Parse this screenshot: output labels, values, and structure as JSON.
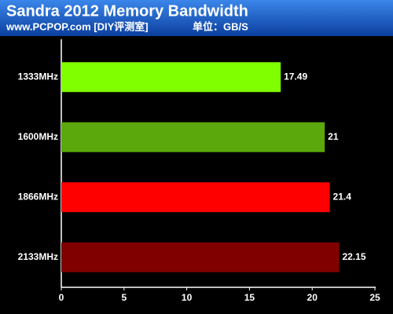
{
  "chart_data": {
    "type": "hbar",
    "title": "Sandra 2012 Memory Bandwidth",
    "subtitle": "www.PCPOP.com [DIY评测室]",
    "unit_label": "单位：GB/S",
    "categories": [
      "1333MHz",
      "1600MHz",
      "1866MHz",
      "2133MHz"
    ],
    "values": [
      17.49,
      21,
      21.4,
      22.15
    ],
    "colors": [
      "#80ff00",
      "#5aa80c",
      "#ff0000",
      "#800000"
    ],
    "xlim": [
      0,
      25
    ],
    "xticks": [
      0,
      5,
      10,
      15,
      20,
      25
    ]
  }
}
